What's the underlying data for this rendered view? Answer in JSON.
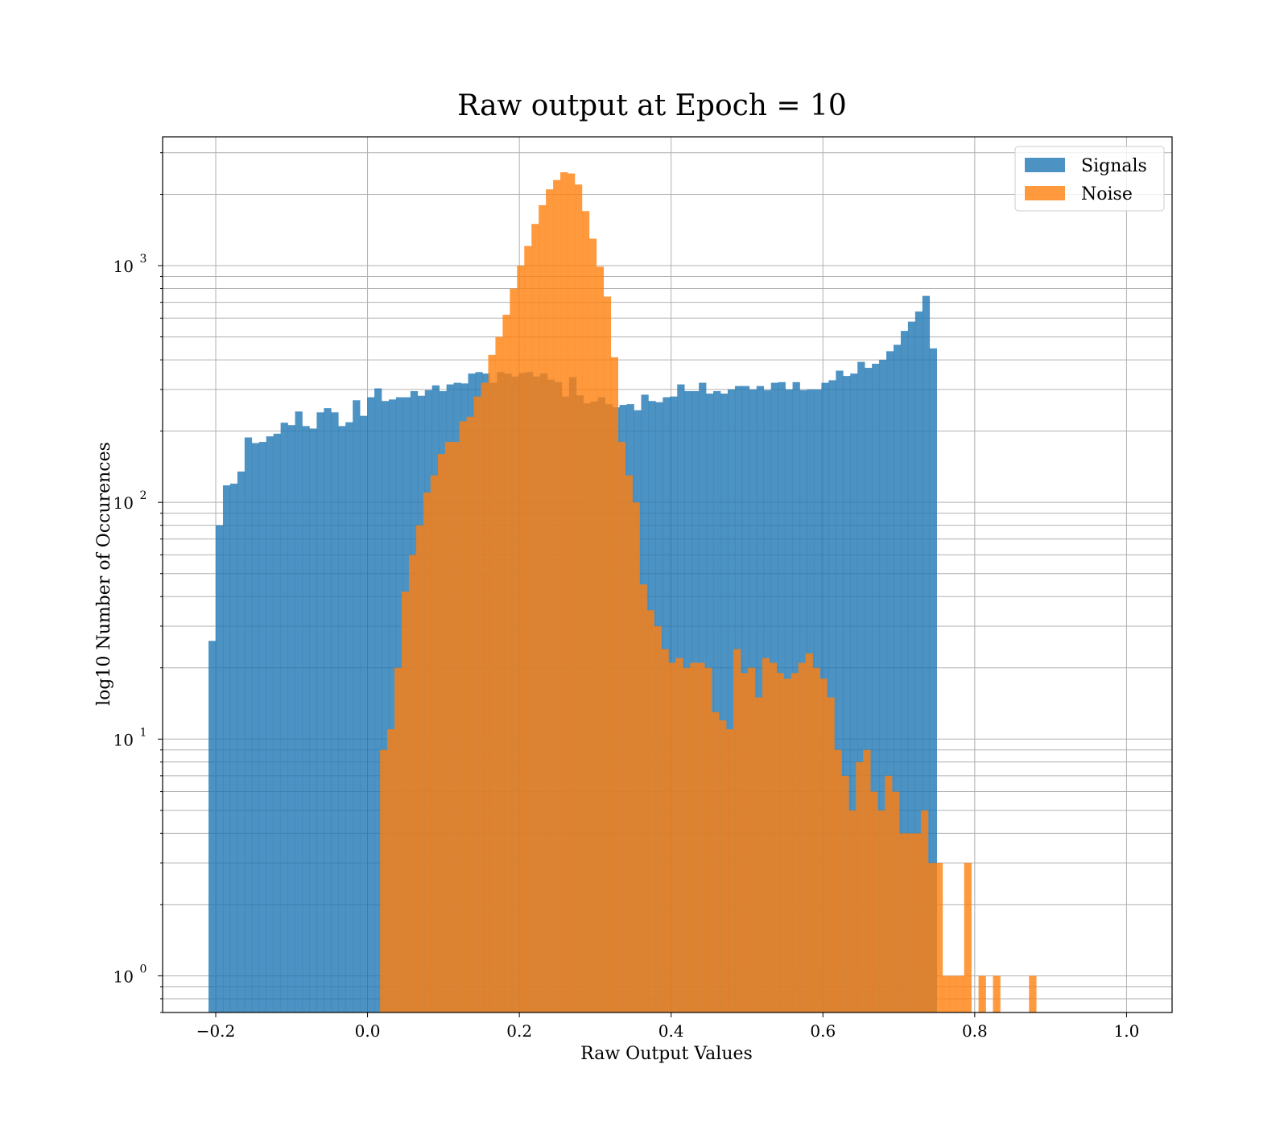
{
  "chart_data": {
    "type": "bar",
    "subtype": "histogram",
    "title": "Raw output at Epoch = 10",
    "xlabel": "Raw Output Values",
    "ylabel": "log10 Number of Occurences",
    "yscale": "log",
    "xlim": [
      -0.27,
      1.06
    ],
    "ylim": [
      0.7,
      3500
    ],
    "x_ticks": [
      -0.2,
      0.0,
      0.2,
      0.4,
      0.6,
      0.8,
      1.0
    ],
    "x_tick_labels": [
      "−0.2",
      "0.0",
      "0.2",
      "0.4",
      "0.6",
      "0.8",
      "1.0"
    ],
    "y_ticks": [
      1,
      10,
      100,
      1000
    ],
    "y_tick_labels": [
      {
        "base": "10",
        "exp": "0"
      },
      {
        "base": "10",
        "exp": "1"
      },
      {
        "base": "10",
        "exp": "2"
      },
      {
        "base": "10",
        "exp": "3"
      }
    ],
    "grid": true,
    "legend_position": "upper right",
    "colors": {
      "Signals": "#1f77b4",
      "Noise": "#ff7f0e",
      "bar_alpha": 0.8,
      "grid": "#b0b0b0"
    },
    "series": [
      {
        "name": "Signals",
        "x_start": -0.2095,
        "bin_width": 0.0095,
        "values": [
          26,
          80,
          118,
          120,
          135,
          188,
          178,
          180,
          190,
          195,
          217,
          212,
          242,
          210,
          205,
          240,
          250,
          240,
          210,
          218,
          270,
          232,
          278,
          303,
          268,
          272,
          278,
          278,
          295,
          282,
          298,
          312,
          295,
          315,
          320,
          318,
          350,
          355,
          350,
          320,
          355,
          350,
          340,
          352,
          355,
          340,
          350,
          330,
          322,
          280,
          338,
          283,
          262,
          267,
          278,
          260,
          252,
          258,
          260,
          245,
          285,
          268,
          265,
          278,
          280,
          315,
          295,
          295,
          320,
          288,
          295,
          288,
          300,
          310,
          310,
          300,
          310,
          298,
          320,
          322,
          300,
          322,
          298,
          300,
          300,
          320,
          328,
          360,
          342,
          350,
          392,
          370,
          385,
          400,
          435,
          463,
          530,
          580,
          640,
          745,
          447
        ]
      },
      {
        "name": "Noise",
        "x_start": 0.0165,
        "bin_width": 0.0095,
        "values": [
          9,
          11,
          20,
          42,
          60,
          80,
          110,
          130,
          160,
          180,
          180,
          220,
          230,
          280,
          320,
          420,
          500,
          620,
          800,
          1000,
          1210,
          1500,
          1800,
          2100,
          2300,
          2480,
          2450,
          2200,
          1700,
          1300,
          990,
          740,
          410,
          180,
          130,
          100,
          45,
          35,
          30,
          24,
          21,
          22,
          20,
          21,
          21,
          20,
          13,
          12,
          11,
          24,
          19,
          20,
          15,
          22,
          21,
          19,
          18,
          19,
          21,
          23,
          20,
          18,
          15,
          9,
          7,
          5,
          8,
          9,
          6,
          5,
          7,
          6,
          4,
          4,
          4,
          5,
          3,
          3,
          1,
          1,
          1,
          3,
          0.5,
          1,
          0.5,
          1,
          0.5,
          0.5,
          0.5,
          0.5,
          1
        ]
      }
    ]
  }
}
